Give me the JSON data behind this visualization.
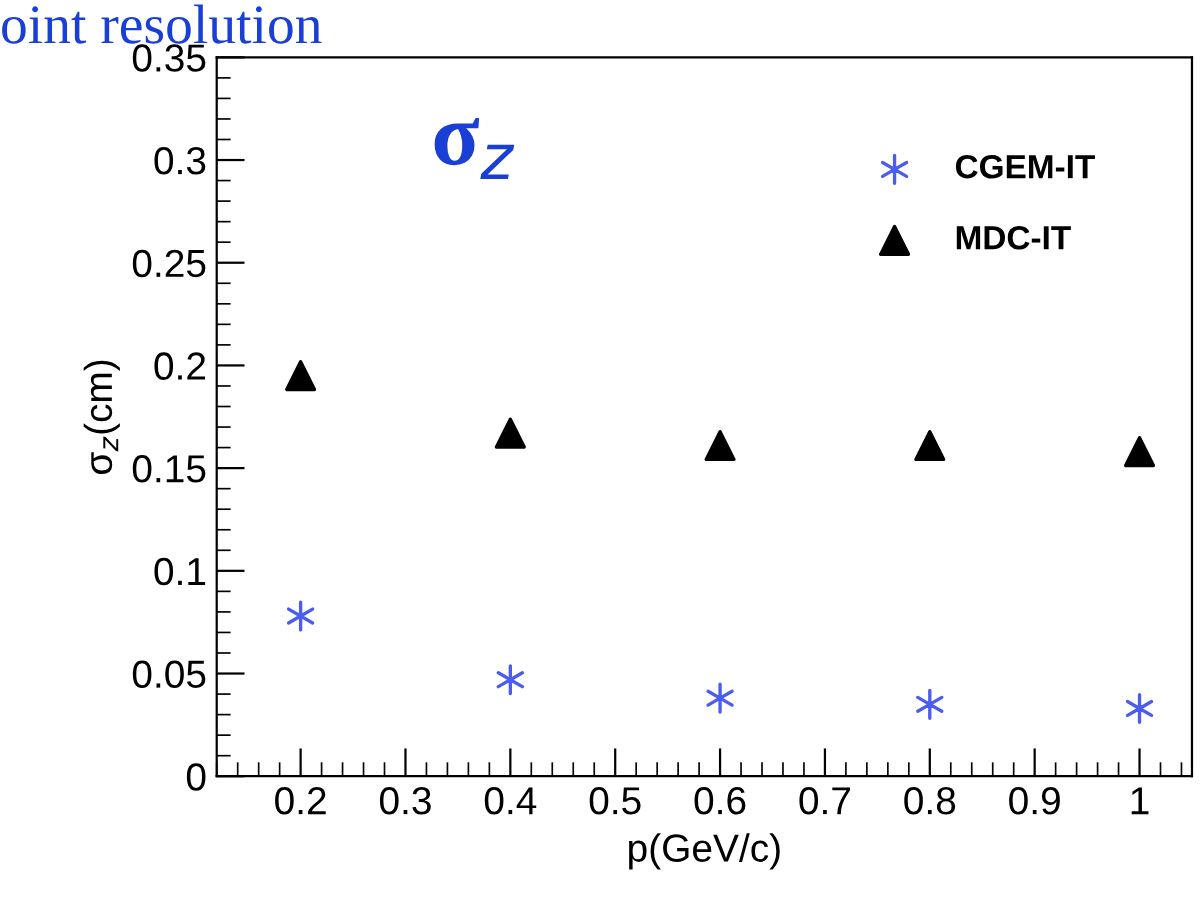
{
  "chart_data": {
    "type": "scatter",
    "title": "oint resolution",
    "xlabel": "p(GeV/c)",
    "ylabel": "σ$_{z}$(cm)",
    "annotations": [
      "σ$_{z}$"
    ],
    "x": [
      0.2,
      0.4,
      0.6,
      0.8,
      1.0
    ],
    "series": [
      {
        "name": "CGEM-IT",
        "color": "#4b5cf0",
        "marker": "cross",
        "values": [
          0.078,
          0.047,
          0.038,
          0.035,
          0.033
        ]
      },
      {
        "name": "MDC-IT",
        "color": "#000000",
        "marker": "triangle",
        "values": [
          0.195,
          0.167,
          0.161,
          0.161,
          0.158
        ]
      }
    ],
    "xlim": [
      0.12,
      1.05
    ],
    "ylim": [
      0,
      0.35
    ],
    "xticks": [
      0.2,
      0.3,
      0.4,
      0.5,
      0.6,
      0.7,
      0.8,
      0.9,
      1
    ],
    "yticks": [
      0,
      0.05,
      0.1,
      0.15,
      0.2,
      0.25,
      0.3,
      0.35
    ],
    "grid": false,
    "legend": "top right"
  }
}
